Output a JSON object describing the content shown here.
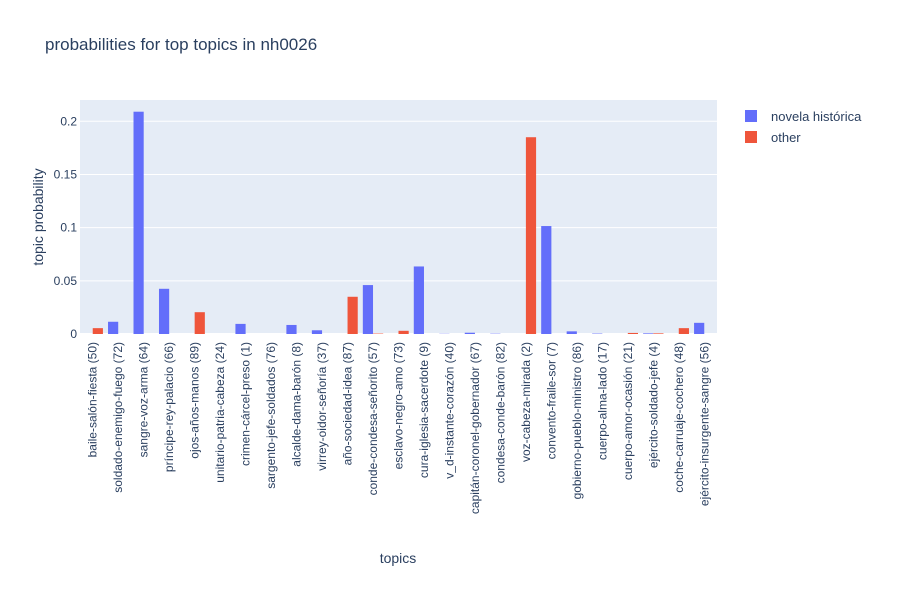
{
  "chart_data": {
    "type": "bar",
    "title": "probabilities for top topics in nh0026",
    "xlabel": "topics",
    "ylabel": "topic probability",
    "ylim": [
      0,
      0.22
    ],
    "yticks": [
      0,
      0.05,
      0.1,
      0.15,
      0.2
    ],
    "ytick_labels": [
      "0",
      "0.05",
      "0.1",
      "0.15",
      "0.2"
    ],
    "grid": true,
    "legend_position": "top-right",
    "categories": [
      "baile-salón-fiesta (50)",
      "soldado-enemigo-fuego (72)",
      "sangre-voz-arma (64)",
      "príncipe-rey-palacio (66)",
      "ojos-años-manos (89)",
      "unitario-patria-cabeza (24)",
      "crimen-cárcel-preso (1)",
      "sargento-jefe-soldados (76)",
      "alcalde-dama-barón (8)",
      "virrey-oidor-señoría (37)",
      "año-sociedad-idea (87)",
      "conde-condesa-señorito (57)",
      "esclavo-negro-amo (73)",
      "cura-iglesia-sacerdote (9)",
      "v_d-instante-corazón (40)",
      "capitán-coronel-gobernador (67)",
      "condesa-conde-barón (82)",
      "voz-cabeza-mirada (2)",
      "convento-fraile-sor (7)",
      "gobierno-pueblo-ministro (86)",
      "cuerpo-alma-lado (17)",
      "cuerpo-amor-ocasión (21)",
      "ejército-soldado-jefe (4)",
      "coche-carruaje-cochero (48)",
      "ejército-insurgente-sangre (56)"
    ],
    "series": [
      {
        "name": "novela histórica",
        "color": "#636efa",
        "values": [
          0,
          0.0115,
          0.209,
          0.0425,
          0,
          0,
          0.0095,
          0,
          0.0085,
          0.0035,
          0,
          0.046,
          0,
          0.0635,
          0.0002,
          0.0012,
          0.0003,
          0,
          0.1015,
          0.0025,
          0.0004,
          0,
          0.0006,
          0,
          0.0105
        ]
      },
      {
        "name": "other",
        "color": "#ef553b",
        "values": [
          0.0055,
          0,
          0,
          0,
          0.0205,
          0,
          0,
          0,
          0,
          0,
          0.035,
          0.0004,
          0.003,
          0,
          0,
          0,
          0,
          0.185,
          0,
          0,
          0,
          0.001,
          0.0006,
          0.0055,
          0
        ]
      }
    ]
  }
}
